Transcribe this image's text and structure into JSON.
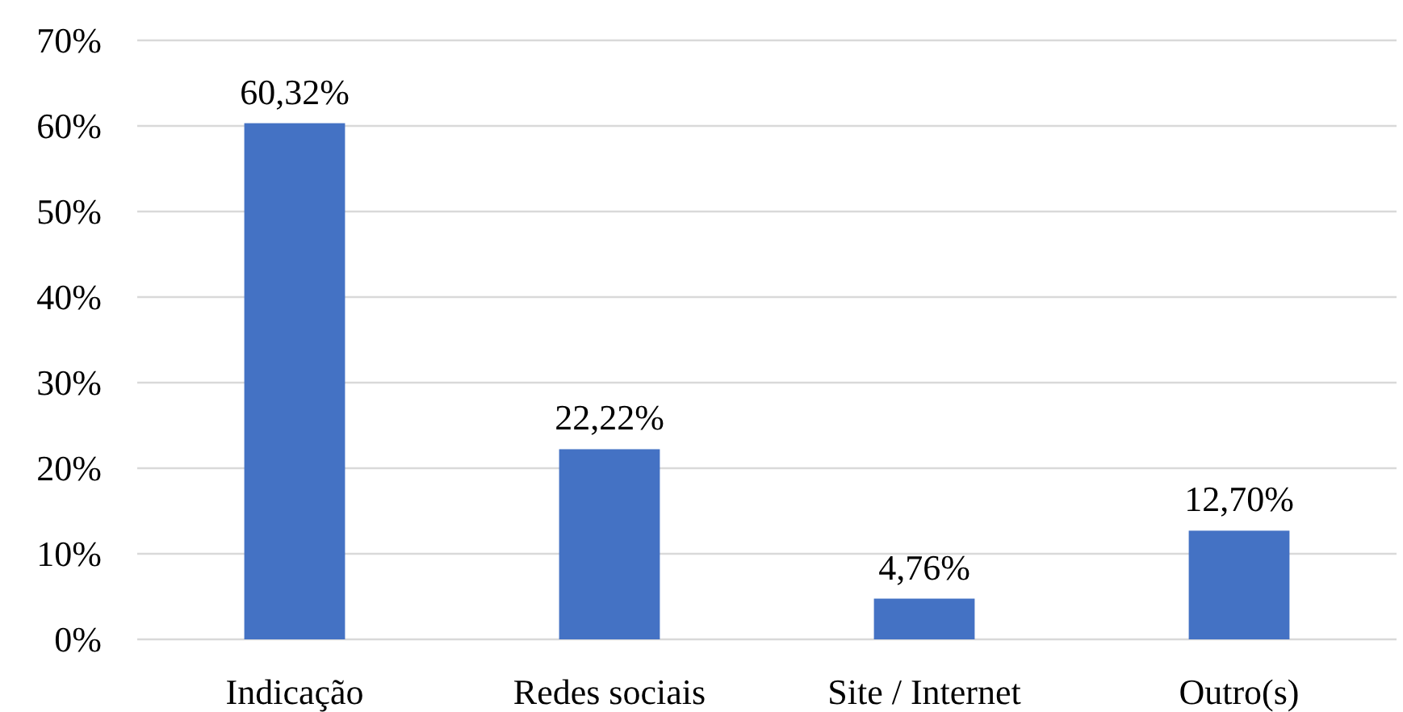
{
  "chart_data": {
    "type": "bar",
    "categories": [
      "Indicação",
      "Redes sociais",
      "Site / Internet",
      "Outro(s)"
    ],
    "values": [
      60.32,
      22.22,
      4.76,
      12.7
    ],
    "color": "#4472c4",
    "value_labels": [
      "60,32%",
      "22,22%",
      "4,76%",
      "12,70%"
    ],
    "ylim": [
      0,
      70
    ],
    "yticks": [
      {
        "value": 0,
        "label": "0%"
      },
      {
        "value": 10,
        "label": "10%"
      },
      {
        "value": 20,
        "label": "20%"
      },
      {
        "value": 30,
        "label": "30%"
      },
      {
        "value": 40,
        "label": "40%"
      },
      {
        "value": 50,
        "label": "50%"
      },
      {
        "value": 60,
        "label": "60%"
      },
      {
        "value": 70,
        "label": "70%"
      }
    ],
    "grid": "y"
  }
}
